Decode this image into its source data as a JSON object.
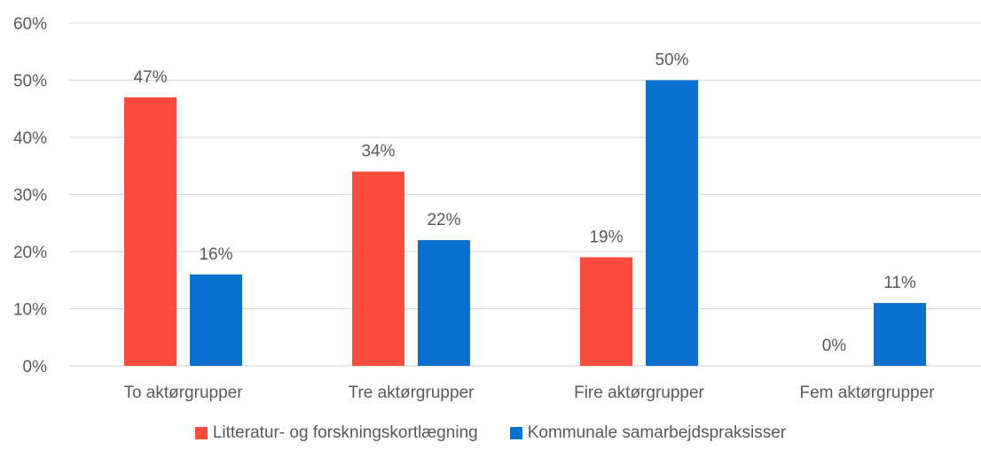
{
  "chart_data": {
    "type": "bar",
    "categories": [
      "To aktørgrupper",
      "Tre aktørgrupper",
      "Fire aktørgrupper",
      "Fem aktørgrupper"
    ],
    "series": [
      {
        "name": "Litteratur- og forskningskortlægning",
        "values": [
          47,
          34,
          19,
          0
        ],
        "labels": [
          "47%",
          "34%",
          "19%",
          "0%"
        ],
        "color": "#FA4B3C"
      },
      {
        "name": "Kommunale samarbejdspraksisser",
        "values": [
          16,
          22,
          50,
          11
        ],
        "labels": [
          "16%",
          "22%",
          "50%",
          "11%"
        ],
        "color": "#0A72CE"
      }
    ],
    "ylim": [
      0,
      60
    ],
    "yticks": [
      "0%",
      "10%",
      "20%",
      "30%",
      "40%",
      "50%",
      "60%"
    ],
    "grid": true,
    "legend": "bottom"
  }
}
